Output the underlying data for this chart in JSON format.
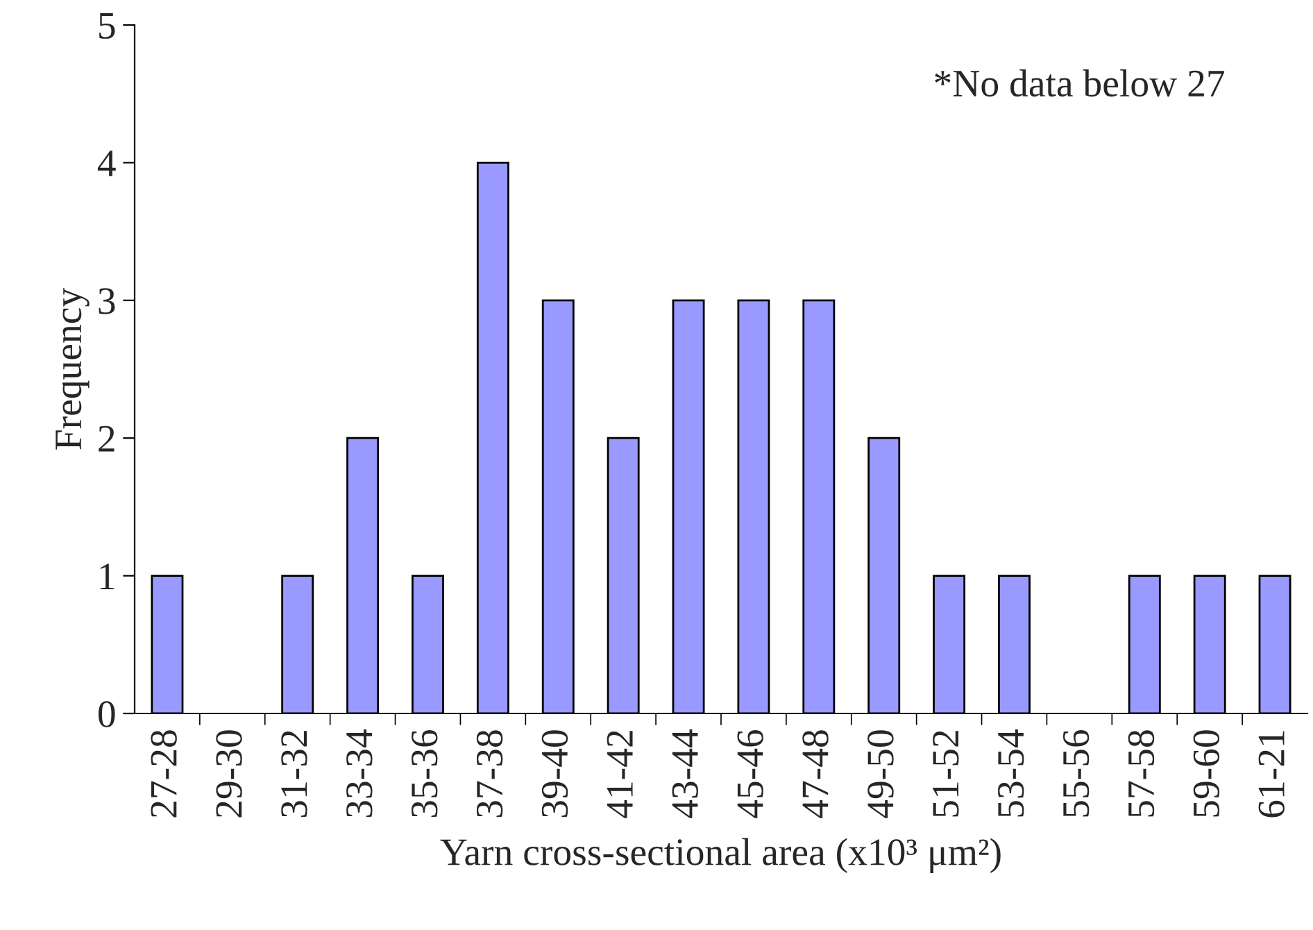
{
  "chart_data": {
    "type": "bar",
    "xlabel": "Yarn cross-sectional area (x10³ μm²)",
    "ylabel": "Frequency",
    "categories": [
      "27-28",
      "29-30",
      "31-32",
      "33-34",
      "35-36",
      "37-38",
      "39-40",
      "41-42",
      "43-44",
      "45-46",
      "47-48",
      "49-50",
      "51-52",
      "53-54",
      "55-56",
      "57-58",
      "59-60",
      "61-21"
    ],
    "values": [
      1,
      0,
      1,
      2,
      1,
      4,
      3,
      2,
      3,
      3,
      3,
      2,
      1,
      1,
      0,
      1,
      1,
      1
    ],
    "color": "#9999ff",
    "ylim": [
      0,
      5
    ],
    "yticks": [
      0,
      1,
      2,
      3,
      4,
      5
    ],
    "grid": false,
    "legend": false,
    "annotations": [
      "*No data below 27"
    ]
  }
}
